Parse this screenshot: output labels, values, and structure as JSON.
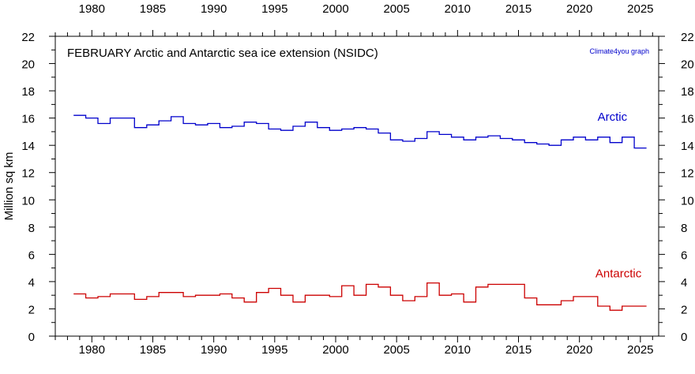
{
  "chart_data": {
    "type": "line",
    "step": true,
    "title": "FEBRUARY Arctic and Antarctic sea ice extension (NSIDC)",
    "credit": "Climate4you graph",
    "ylabel": "Million sq km",
    "xlabel": "",
    "xlim": [
      1977,
      2026.5
    ],
    "ylim": [
      0,
      22
    ],
    "x_ticks": [
      1980,
      1985,
      1990,
      1995,
      2000,
      2005,
      2010,
      2015,
      2020,
      2025
    ],
    "y_ticks": [
      0,
      2,
      4,
      6,
      8,
      10,
      12,
      14,
      16,
      18,
      20,
      22
    ],
    "colors": {
      "arctic": "#0000cc",
      "antarctic": "#cc0000",
      "credit": "#0000cc"
    },
    "years": [
      1979,
      1980,
      1981,
      1982,
      1983,
      1984,
      1985,
      1986,
      1987,
      1988,
      1989,
      1990,
      1991,
      1992,
      1993,
      1994,
      1995,
      1996,
      1997,
      1998,
      1999,
      2000,
      2001,
      2002,
      2003,
      2004,
      2005,
      2006,
      2007,
      2008,
      2009,
      2010,
      2011,
      2012,
      2013,
      2014,
      2015,
      2016,
      2017,
      2018,
      2019,
      2020,
      2021,
      2022,
      2023,
      2024,
      2025
    ],
    "series": [
      {
        "name": "Arctic",
        "key": "arctic",
        "values": [
          16.2,
          16.0,
          15.6,
          16.0,
          16.0,
          15.3,
          15.5,
          15.8,
          16.1,
          15.6,
          15.5,
          15.6,
          15.3,
          15.4,
          15.7,
          15.6,
          15.2,
          15.1,
          15.4,
          15.7,
          15.3,
          15.1,
          15.2,
          15.3,
          15.2,
          14.9,
          14.4,
          14.3,
          14.5,
          15.0,
          14.8,
          14.6,
          14.4,
          14.6,
          14.7,
          14.5,
          14.4,
          14.2,
          14.1,
          14.0,
          14.4,
          14.6,
          14.4,
          14.6,
          14.2,
          14.6,
          13.8
        ]
      },
      {
        "name": "Antarctic",
        "key": "antarctic",
        "values": [
          3.1,
          2.8,
          2.9,
          3.1,
          3.1,
          2.7,
          2.9,
          3.2,
          3.2,
          2.9,
          3.0,
          3.0,
          3.1,
          2.8,
          2.5,
          3.2,
          3.5,
          3.0,
          2.5,
          3.0,
          3.0,
          2.9,
          3.7,
          3.0,
          3.8,
          3.6,
          3.0,
          2.6,
          2.9,
          3.9,
          3.0,
          3.1,
          2.5,
          3.6,
          3.8,
          3.8,
          3.8,
          2.8,
          2.3,
          2.3,
          2.6,
          2.9,
          2.9,
          2.2,
          1.9,
          2.2,
          2.2
        ]
      }
    ]
  }
}
